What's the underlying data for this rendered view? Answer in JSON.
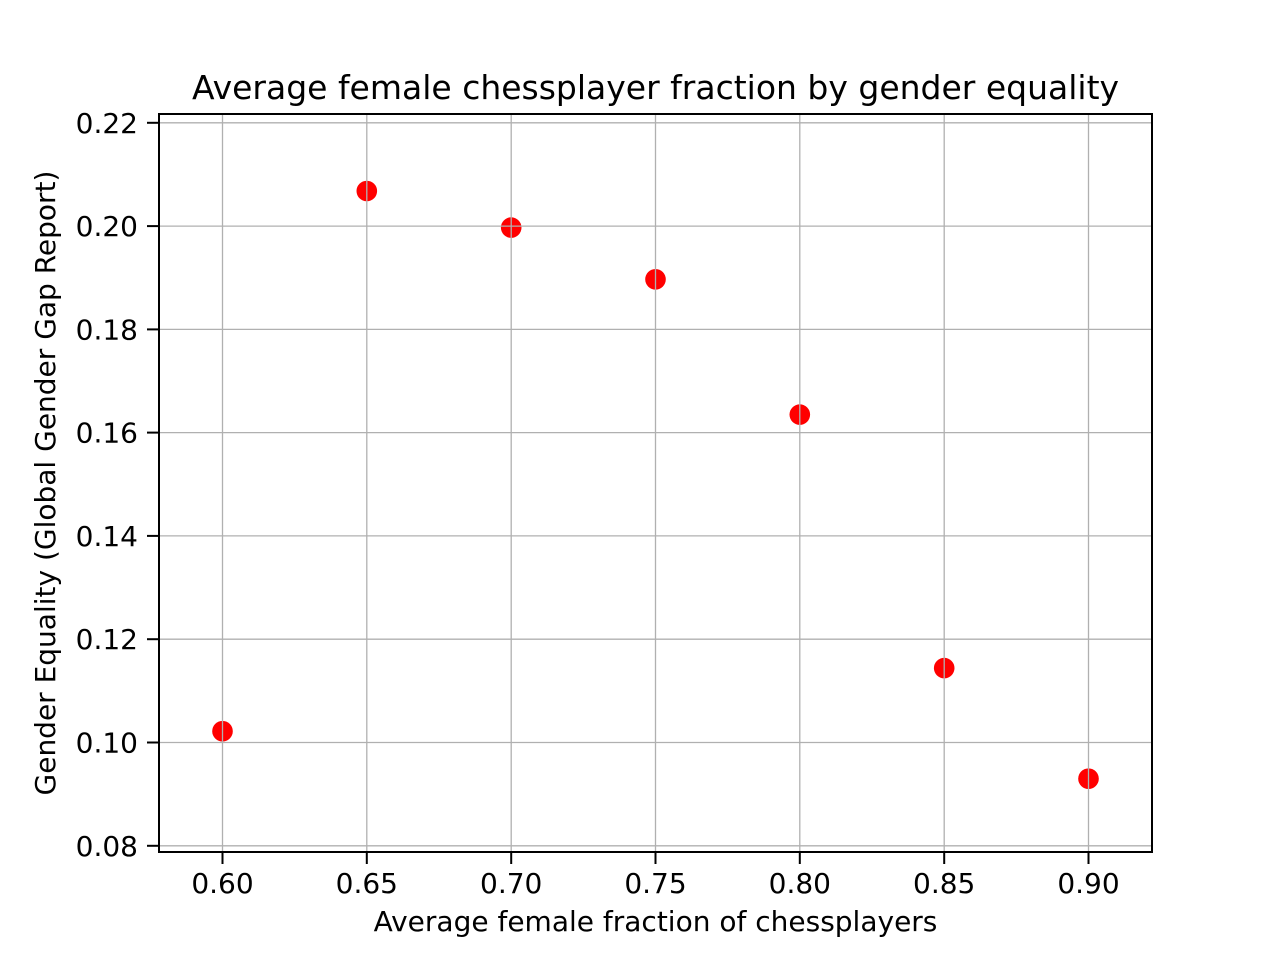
{
  "chart_data": {
    "type": "scatter",
    "title": "Average female chessplayer fraction by gender equality",
    "xlabel": "Average female fraction of chessplayers",
    "ylabel": "Gender Equality (Global Gender Gap Report)",
    "x": [
      0.6,
      0.65,
      0.7,
      0.75,
      0.8,
      0.85,
      0.9
    ],
    "y": [
      0.1022,
      0.2068,
      0.1997,
      0.1897,
      0.1635,
      0.1144,
      0.093
    ],
    "xticks": [
      0.6,
      0.65,
      0.7,
      0.75,
      0.8,
      0.85,
      0.9
    ],
    "xtick_labels": [
      "0.60",
      "0.65",
      "0.70",
      "0.75",
      "0.80",
      "0.85",
      "0.90"
    ],
    "yticks": [
      0.08,
      0.1,
      0.12,
      0.14,
      0.16,
      0.18,
      0.2,
      0.22
    ],
    "ytick_labels": [
      "0.08",
      "0.10",
      "0.12",
      "0.14",
      "0.16",
      "0.18",
      "0.20",
      "0.22"
    ],
    "xlim": [
      0.578,
      0.922
    ],
    "ylim": [
      0.0788,
      0.2217
    ],
    "grid": true,
    "grid_over_points": true,
    "legend_position": "none",
    "marker_color": "#ff0000",
    "grid_color": "#b0b0b0",
    "spine_color": "#000000",
    "tick_color": "#000000",
    "background_color": "#ffffff",
    "marker_radius_px": 10.3
  }
}
